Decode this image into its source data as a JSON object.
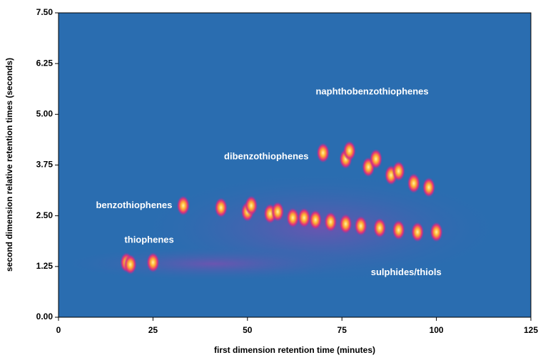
{
  "chart_data": {
    "type": "contour",
    "x_label": "first dimension retention time (minutes)",
    "y_label": "second dimension relative retention times (seconds)",
    "xlim": [
      0,
      125
    ],
    "ylim": [
      0,
      7.5
    ],
    "xticks": [
      0,
      25,
      50,
      75,
      100,
      125
    ],
    "yticks": [
      {
        "value": 0,
        "label": "0.00"
      },
      {
        "value": 1.25,
        "label": "1.25"
      },
      {
        "value": 2.5,
        "label": "2.50"
      },
      {
        "value": 3.75,
        "label": "3.75"
      },
      {
        "value": 5,
        "label": "5.00"
      },
      {
        "value": 6.25,
        "label": "6.25"
      },
      {
        "value": 7.5,
        "label": "7.50"
      }
    ],
    "x": [
      18,
      19,
      25,
      33,
      43,
      50,
      51,
      56,
      58,
      62,
      65,
      68,
      72,
      76,
      80,
      85,
      90,
      95,
      100,
      70,
      76,
      77,
      82,
      84,
      88,
      90,
      94,
      98
    ],
    "y": [
      1.35,
      1.3,
      1.35,
      2.75,
      2.7,
      2.6,
      2.75,
      2.55,
      2.6,
      2.45,
      2.45,
      2.4,
      2.35,
      2.3,
      2.25,
      2.2,
      2.15,
      2.1,
      2.1,
      4.05,
      3.9,
      4.1,
      3.7,
      3.9,
      3.5,
      3.6,
      3.3,
      3.2
    ],
    "annotations": [
      {
        "text": "naphthobenzothiophenes",
        "x": 83,
        "y": 5.55
      },
      {
        "text": "dibenzothiophenes",
        "x": 55,
        "y": 3.95
      },
      {
        "text": "benzothiophenes",
        "x": 20,
        "y": 2.75
      },
      {
        "text": "thiophenes",
        "x": 24,
        "y": 1.9
      },
      {
        "text": "sulphides/thiols",
        "x": 92,
        "y": 1.1
      }
    ]
  }
}
